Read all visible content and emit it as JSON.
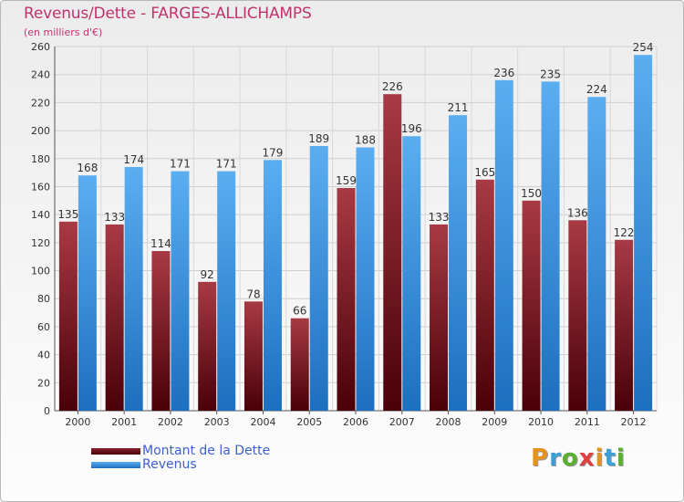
{
  "title": "Revenus/Dette - FARGES-ALLICHAMPS",
  "subtitle": "(en milliers d'€)",
  "colors": {
    "debt": "#7a1a24",
    "revenue": "#3d9be8",
    "title": "#c0336d",
    "legend_text": "#3d5fcf"
  },
  "legend": {
    "debt_label": "Montant de la Dette",
    "revenue_label": "Revenus"
  },
  "logo": {
    "text": "Proxiti"
  },
  "chart_data": {
    "type": "bar",
    "title": "Revenus/Dette - FARGES-ALLICHAMPS",
    "subtitle": "(en milliers d'€)",
    "categories": [
      "2000",
      "2001",
      "2002",
      "2003",
      "2004",
      "2005",
      "2006",
      "2007",
      "2008",
      "2009",
      "2010",
      "2011",
      "2012"
    ],
    "series": [
      {
        "name": "Montant de la Dette",
        "values": [
          135,
          133,
          114,
          92,
          78,
          66,
          159,
          226,
          133,
          165,
          150,
          136,
          122
        ]
      },
      {
        "name": "Revenus",
        "values": [
          168,
          174,
          171,
          171,
          179,
          189,
          188,
          196,
          211,
          236,
          235,
          224,
          254
        ]
      }
    ],
    "ylim": [
      0,
      260
    ],
    "yticks": [
      0,
      20,
      40,
      60,
      80,
      100,
      120,
      140,
      160,
      180,
      200,
      220,
      240,
      260
    ],
    "grid": true,
    "legend_position": "bottom-left"
  }
}
